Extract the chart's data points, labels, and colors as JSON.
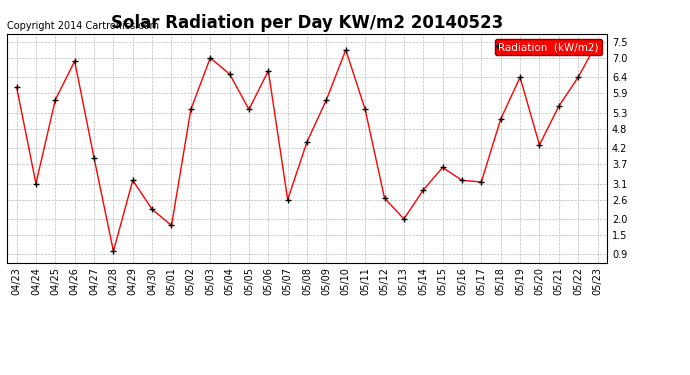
{
  "title": "Solar Radiation per Day KW/m2 20140523",
  "copyright": "Copyright 2014 Cartronics.com",
  "legend_label": "Radiation  (kW/m2)",
  "dates": [
    "04/23",
    "04/24",
    "04/25",
    "04/26",
    "04/27",
    "04/28",
    "04/29",
    "04/30",
    "05/01",
    "05/02",
    "05/03",
    "05/04",
    "05/05",
    "05/06",
    "05/07",
    "05/08",
    "05/09",
    "05/10",
    "05/11",
    "05/12",
    "05/13",
    "05/14",
    "05/15",
    "05/16",
    "05/17",
    "05/18",
    "05/19",
    "05/20",
    "05/21",
    "05/22",
    "05/23"
  ],
  "values": [
    6.1,
    3.1,
    5.7,
    6.9,
    3.9,
    1.0,
    3.2,
    2.3,
    1.8,
    5.4,
    7.0,
    6.5,
    5.4,
    6.6,
    2.6,
    4.4,
    5.7,
    7.25,
    5.4,
    2.65,
    2.0,
    2.9,
    3.6,
    3.2,
    3.15,
    5.1,
    6.4,
    4.3,
    5.5,
    6.4,
    7.5
  ],
  "line_color": "red",
  "marker_color": "black",
  "background_color": "#ffffff",
  "grid_color": "#bbbbbb",
  "yticks": [
    0.9,
    1.5,
    2.0,
    2.6,
    3.1,
    3.7,
    4.2,
    4.8,
    5.3,
    5.9,
    6.4,
    7.0,
    7.5
  ],
  "ylim": [
    0.65,
    7.75
  ],
  "legend_bg": "#ff0000",
  "legend_text_color": "#ffffff",
  "title_fontsize": 12,
  "copyright_fontsize": 7,
  "tick_fontsize": 7,
  "legend_fontsize": 7.5
}
